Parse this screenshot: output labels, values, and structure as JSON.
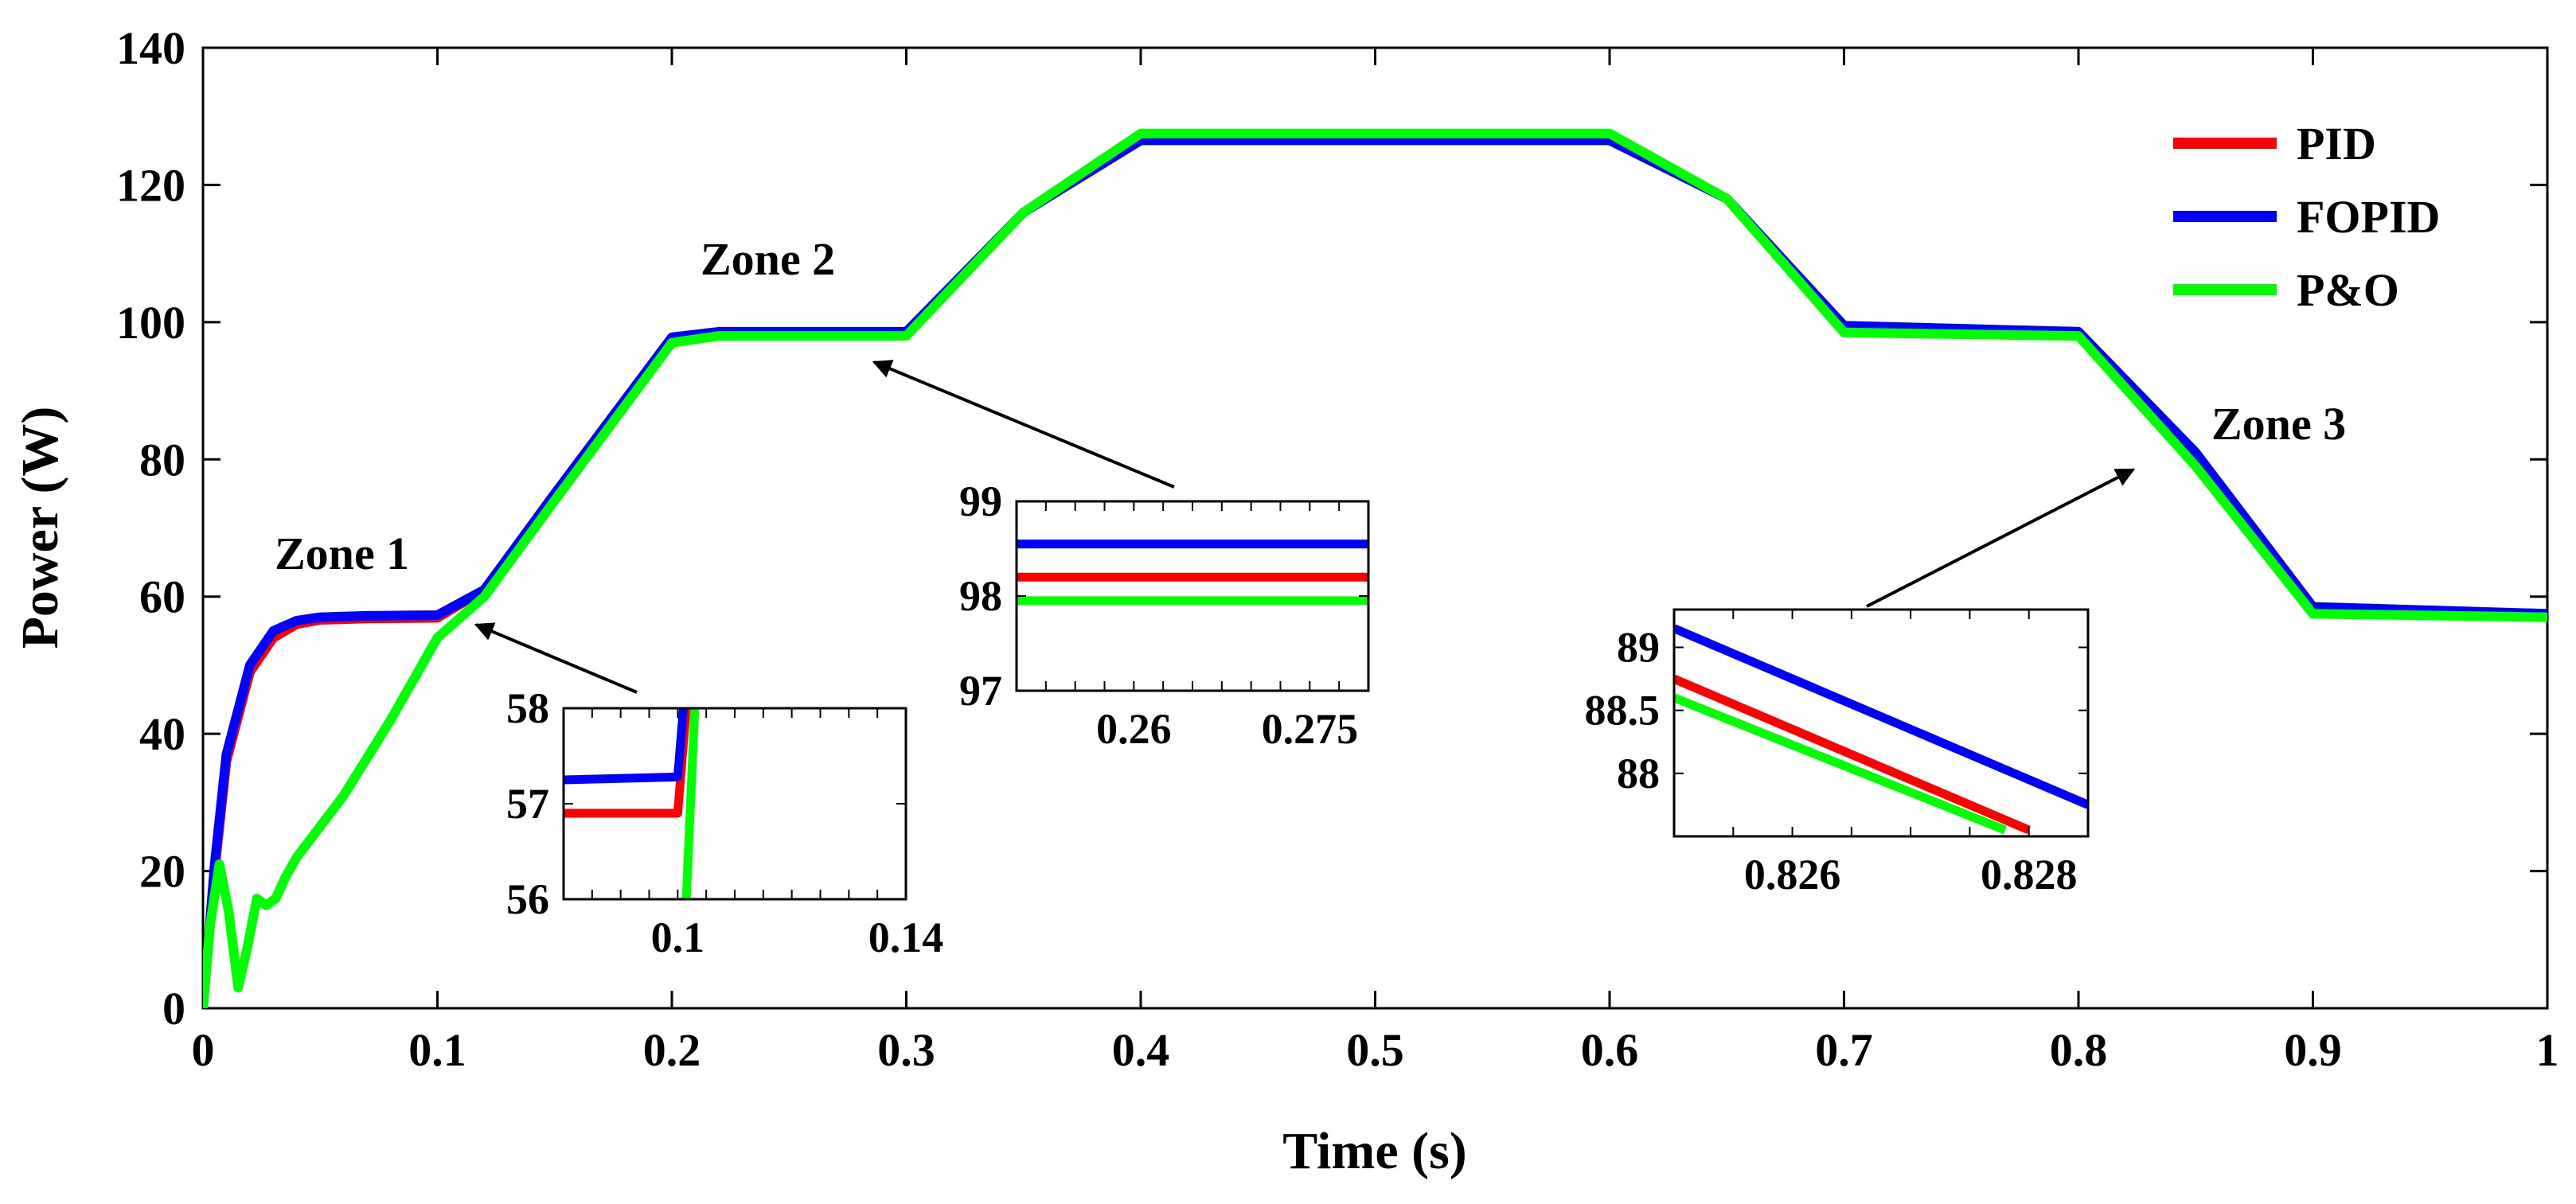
{
  "chart_data": {
    "type": "line",
    "xlabel": "Time (s)",
    "ylabel": "Power (W)",
    "xlim": [
      0,
      1
    ],
    "ylim": [
      0,
      140
    ],
    "xticks": [
      "0",
      "0.1",
      "0.2",
      "0.3",
      "0.4",
      "0.5",
      "0.6",
      "0.7",
      "0.8",
      "0.9",
      "1"
    ],
    "yticks": [
      "0",
      "20",
      "40",
      "60",
      "80",
      "100",
      "120",
      "140"
    ],
    "legend": {
      "position": "top-right"
    },
    "colors": {
      "PID": "#ff0000",
      "FOPID": "#0000ff",
      "P&O": "#00ff00"
    },
    "series": [
      {
        "name": "PID",
        "x": [
          0,
          0.005,
          0.01,
          0.02,
          0.03,
          0.04,
          0.05,
          0.07,
          0.1,
          0.12,
          0.15,
          0.2,
          0.22,
          0.3,
          0.35,
          0.4,
          0.6,
          0.65,
          0.7,
          0.8,
          0.85,
          0.9,
          1.0
        ],
        "y": [
          0,
          20,
          36,
          49,
          54,
          56,
          56.6,
          56.8,
          56.9,
          61,
          74,
          97.5,
          98.2,
          98.2,
          116,
          127,
          127,
          118,
          99,
          98.2,
          80,
          58,
          57
        ]
      },
      {
        "name": "FOPID",
        "x": [
          0,
          0.005,
          0.01,
          0.02,
          0.03,
          0.04,
          0.05,
          0.07,
          0.1,
          0.12,
          0.15,
          0.2,
          0.22,
          0.3,
          0.35,
          0.4,
          0.6,
          0.65,
          0.7,
          0.8,
          0.85,
          0.9,
          1.0
        ],
        "y": [
          0,
          21,
          37,
          50,
          55,
          56.5,
          57,
          57.2,
          57.3,
          61,
          75,
          97.8,
          98.6,
          98.6,
          116,
          126.5,
          126.5,
          118,
          99.5,
          98.6,
          81,
          58.5,
          57.5
        ]
      },
      {
        "name": "P&O",
        "x": [
          0,
          0.003,
          0.007,
          0.011,
          0.015,
          0.019,
          0.023,
          0.027,
          0.031,
          0.035,
          0.04,
          0.06,
          0.08,
          0.1,
          0.12,
          0.15,
          0.2,
          0.22,
          0.3,
          0.35,
          0.4,
          0.6,
          0.65,
          0.7,
          0.8,
          0.85,
          0.9,
          1.0
        ],
        "y": [
          0,
          12,
          21,
          14,
          3,
          9,
          16,
          15,
          16,
          19,
          22,
          31,
          42,
          54,
          60,
          74,
          97,
          98,
          98,
          116,
          127.5,
          127.5,
          118,
          98.5,
          98,
          79,
          57.5,
          57
        ]
      }
    ],
    "annotations": [
      {
        "text": "Zone 1",
        "target_x": 0.113,
        "target_y": 57.5
      },
      {
        "text": "Zone 2",
        "target_x": 0.287,
        "target_y": 95
      },
      {
        "text": "Zone 3",
        "target_x": 0.847,
        "target_y": 78.5
      }
    ],
    "insets": [
      {
        "name": "zone1-inset",
        "xlim": [
          0.08,
          0.14
        ],
        "ylim": [
          56,
          58
        ],
        "xticks": [
          0.1,
          0.14
        ],
        "xtick_labels": [
          "0.1",
          "0.14"
        ],
        "yticks": [
          56,
          57,
          58
        ],
        "ytick_labels": [
          "56",
          "57",
          "58"
        ],
        "minor_xticks": [
          0.085,
          0.09,
          0.095,
          0.1,
          0.105,
          0.11,
          0.115,
          0.12,
          0.125,
          0.13,
          0.135
        ],
        "series": [
          {
            "name": "PID",
            "x": [
              0.08,
              0.1,
              0.1015
            ],
            "y": [
              56.9,
              56.9,
              58
            ]
          },
          {
            "name": "FOPID",
            "x": [
              0.08,
              0.1,
              0.101
            ],
            "y": [
              57.25,
              57.28,
              58
            ]
          },
          {
            "name": "P&O",
            "x": [
              0.1015,
              0.103
            ],
            "y": [
              56,
              58
            ]
          }
        ]
      },
      {
        "name": "zone2-inset",
        "xlim": [
          0.25,
          0.28
        ],
        "ylim": [
          97,
          99
        ],
        "xticks": [
          0.26,
          0.275
        ],
        "xtick_labels": [
          "0.26",
          "0.275"
        ],
        "yticks": [
          97,
          98,
          99
        ],
        "ytick_labels": [
          "97",
          "98",
          "99"
        ],
        "minor_xticks": [
          0.2525,
          0.255,
          0.2575,
          0.26,
          0.2625,
          0.265,
          0.2675,
          0.27,
          0.2725,
          0.275,
          0.2775
        ],
        "series": [
          {
            "name": "PID",
            "x": [
              0.25,
              0.28
            ],
            "y": [
              98.2,
              98.2
            ]
          },
          {
            "name": "FOPID",
            "x": [
              0.25,
              0.28
            ],
            "y": [
              98.55,
              98.55
            ]
          },
          {
            "name": "P&O",
            "x": [
              0.25,
              0.28
            ],
            "y": [
              97.95,
              97.95
            ]
          }
        ]
      },
      {
        "name": "zone3-inset",
        "xlim": [
          0.825,
          0.8285
        ],
        "ylim": [
          87.5,
          89.3
        ],
        "xticks": [
          0.826,
          0.828
        ],
        "xtick_labels": [
          "0.826",
          "0.828"
        ],
        "yticks": [
          88,
          88.5,
          89
        ],
        "ytick_labels": [
          "88",
          "88.5",
          "89"
        ],
        "minor_xticks": [
          0.8255,
          0.826,
          0.8265,
          0.827,
          0.8275,
          0.828
        ],
        "series": [
          {
            "name": "PID",
            "x": [
              0.825,
              0.828
            ],
            "y": [
              88.75,
              87.55
            ]
          },
          {
            "name": "FOPID",
            "x": [
              0.825,
              0.8285
            ],
            "y": [
              89.15,
              87.75
            ]
          },
          {
            "name": "P&O",
            "x": [
              0.825,
              0.8278
            ],
            "y": [
              88.6,
              87.55
            ]
          }
        ]
      }
    ]
  }
}
